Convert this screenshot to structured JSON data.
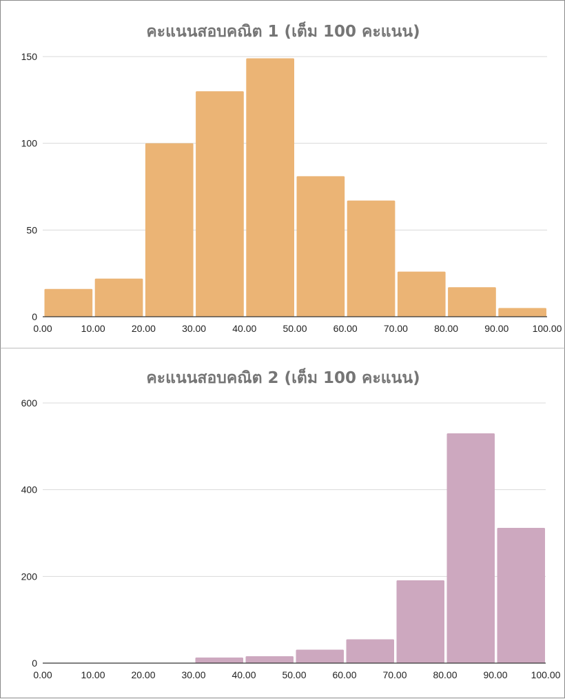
{
  "chart_data": [
    {
      "type": "bar",
      "title": "คะแนนสอบคณิต 1 (เต็ม 100 คะแนน)",
      "xlabel": "",
      "ylabel": "",
      "x_ticks": [
        "0.00",
        "10.00",
        "20.00",
        "30.00",
        "40.00",
        "50.00",
        "60.00",
        "70.00",
        "80.00",
        "90.00",
        "100.00"
      ],
      "y_ticks": [
        "0",
        "50",
        "100",
        "150"
      ],
      "ylim": [
        0,
        150
      ],
      "bins": [
        [
          0,
          10
        ],
        [
          10,
          20
        ],
        [
          20,
          30
        ],
        [
          30,
          40
        ],
        [
          40,
          50
        ],
        [
          50,
          60
        ],
        [
          60,
          70
        ],
        [
          70,
          80
        ],
        [
          80,
          90
        ],
        [
          90,
          100
        ]
      ],
      "values": [
        16,
        22,
        100,
        130,
        149,
        81,
        67,
        26,
        17,
        5
      ],
      "color": "#ebb475",
      "grid": true,
      "legend": "none"
    },
    {
      "type": "bar",
      "title": "คะแนนสอบคณิต 2 (เต็ม 100 คะแนน)",
      "xlabel": "",
      "ylabel": "",
      "x_ticks": [
        "0.00",
        "10.00",
        "20.00",
        "30.00",
        "40.00",
        "50.00",
        "60.00",
        "70.00",
        "80.00",
        "90.00",
        "100.00"
      ],
      "y_ticks": [
        "0",
        "200",
        "400",
        "600"
      ],
      "ylim": [
        0,
        600
      ],
      "bins": [
        [
          0,
          10
        ],
        [
          10,
          20
        ],
        [
          20,
          30
        ],
        [
          30,
          40
        ],
        [
          40,
          50
        ],
        [
          50,
          60
        ],
        [
          60,
          70
        ],
        [
          70,
          80
        ],
        [
          80,
          90
        ],
        [
          90,
          100
        ]
      ],
      "values": [
        0,
        0,
        0,
        13,
        16,
        31,
        55,
        191,
        530,
        312
      ],
      "color": "#cda8bf",
      "grid": true,
      "legend": "none"
    }
  ]
}
